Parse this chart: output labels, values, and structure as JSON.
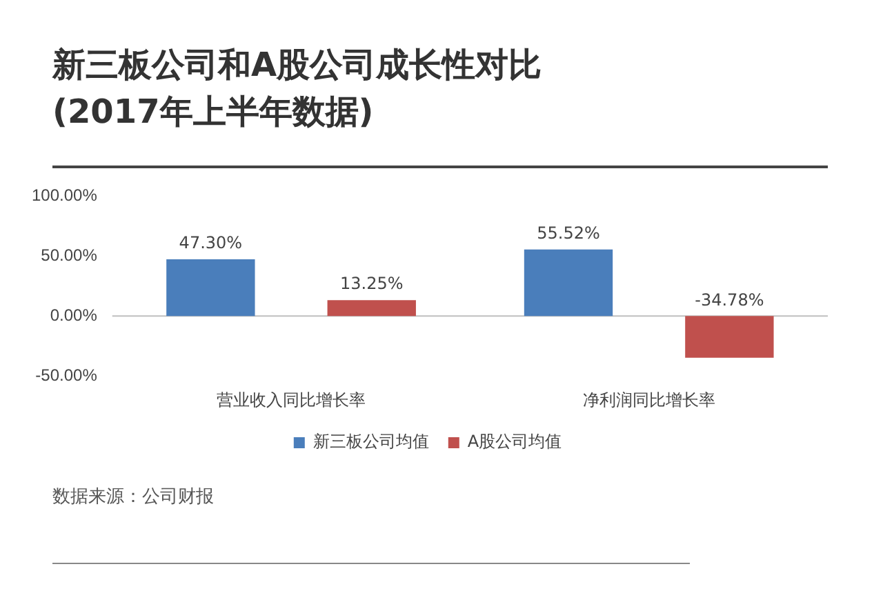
{
  "chart_data": {
    "type": "bar",
    "title": "新三板公司和A股公司成长性对比\n(2017年上半年数据)",
    "categories": [
      "营业收入同比增长率",
      "净利润同比增长率"
    ],
    "series": [
      {
        "name": "新三板公司均值",
        "color": "#4a7ebb",
        "values": [
          47.3,
          55.52
        ],
        "value_labels": [
          "47.30%",
          "55.52%"
        ]
      },
      {
        "name": "A股公司均值",
        "color": "#c0504d",
        "values": [
          13.25,
          -34.78
        ],
        "value_labels": [
          "13.25%",
          "-34.78%"
        ]
      }
    ],
    "ylim": [
      -50,
      100
    ],
    "yticks": [
      {
        "value": -50,
        "label": "-50.00%"
      },
      {
        "value": 0,
        "label": "0.00%"
      },
      {
        "value": 50,
        "label": "50.00%"
      },
      {
        "value": 100,
        "label": "100.00%"
      }
    ],
    "grid": false,
    "legend": "bottom",
    "ref_lines": [
      {
        "axis": "y",
        "value": 0,
        "color": "#bfbfbf"
      }
    ],
    "annotations": [
      "数据来源：公司财报"
    ]
  }
}
